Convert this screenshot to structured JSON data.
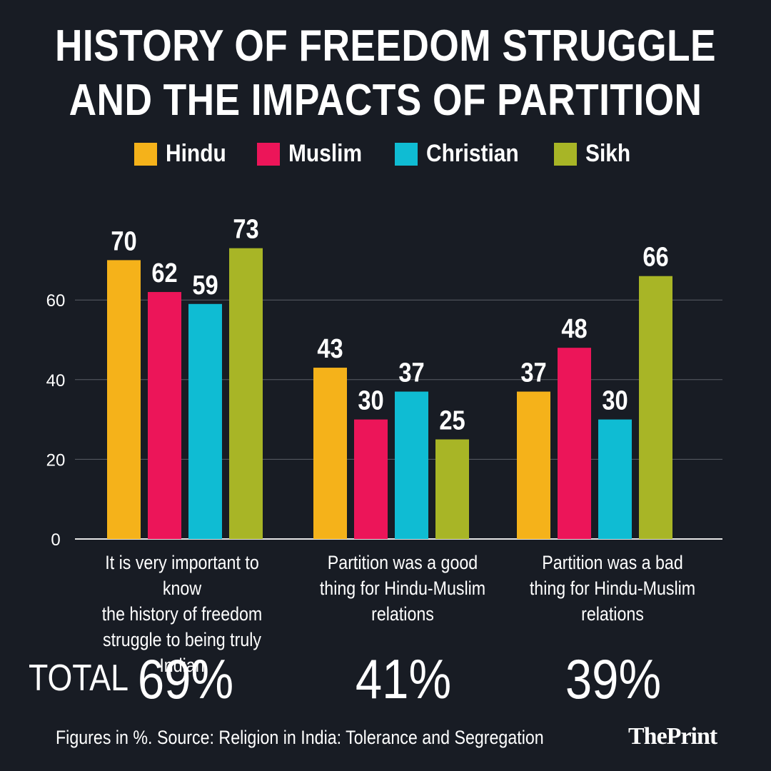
{
  "header": {
    "title_line1": "HISTORY OF FREEDOM STRUGGLE",
    "title_line2": "AND THE IMPACTS OF PARTITION"
  },
  "legend": [
    {
      "label": "Hindu",
      "color": "#f5b21a"
    },
    {
      "label": "Muslim",
      "color": "#ec1559"
    },
    {
      "label": "Christian",
      "color": "#0fbcd3"
    },
    {
      "label": "Sikh",
      "color": "#a8b526"
    }
  ],
  "chart_data": {
    "type": "bar",
    "categories": [
      [
        "It is very important to know",
        "the history of freedom",
        "struggle to being truly Indian"
      ],
      [
        "Partition was a good",
        "thing for Hindu-Muslim",
        "relations"
      ],
      [
        "Partition was a bad",
        "thing for Hindu-Muslim",
        "relations"
      ]
    ],
    "series": [
      {
        "name": "Hindu",
        "values": [
          70,
          43,
          37
        ],
        "color": "#f5b21a"
      },
      {
        "name": "Muslim",
        "values": [
          62,
          30,
          48
        ],
        "color": "#ec1559"
      },
      {
        "name": "Christian",
        "values": [
          59,
          37,
          30
        ],
        "color": "#0fbcd3"
      },
      {
        "name": "Sikh",
        "values": [
          73,
          25,
          66
        ],
        "color": "#a8b526"
      }
    ],
    "yticks": [
      0,
      20,
      40,
      60
    ],
    "ylim": [
      0,
      80
    ],
    "grid": true,
    "legend_position": "top-center"
  },
  "totals": {
    "label": "TOTAL",
    "values": [
      "69%",
      "41%",
      "39%"
    ]
  },
  "footer": {
    "source": "Figures in %. Source: Religion in India: Tolerance and Segregation",
    "brand": "ThePrint"
  }
}
